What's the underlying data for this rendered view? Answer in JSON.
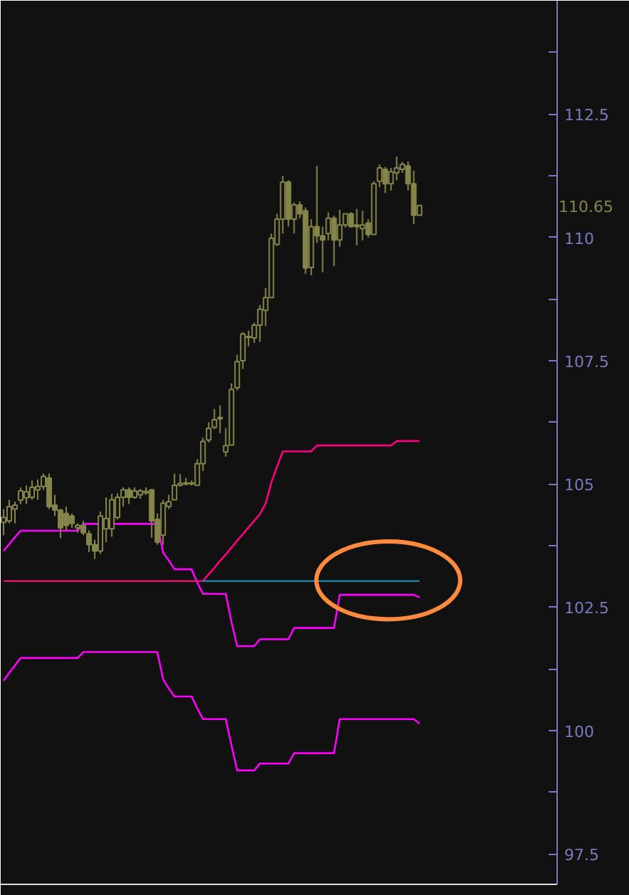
{
  "chart_data": {
    "type": "candlestick",
    "color": "#85854a",
    "categories": [
      null,
      null,
      null,
      null,
      null,
      null,
      null,
      null,
      null,
      null,
      null,
      null,
      null,
      null,
      null,
      null,
      null,
      null,
      null,
      null,
      null,
      null,
      null,
      null,
      null,
      null,
      null,
      null,
      null,
      null,
      null,
      null,
      null,
      null,
      null,
      null,
      null,
      null,
      null,
      null,
      null,
      null,
      null,
      null,
      null,
      null,
      null,
      null,
      null,
      null,
      null,
      null,
      null,
      null,
      null,
      null,
      null,
      null,
      null,
      null,
      null,
      null,
      null,
      null,
      null,
      null,
      null,
      null,
      null,
      null,
      null,
      null,
      null,
      null
    ],
    "ohlc": [
      [
        104.22,
        104.49,
        103.96,
        104.32
      ],
      [
        104.25,
        104.68,
        104.2,
        104.54
      ],
      [
        104.49,
        104.64,
        104.2,
        104.57
      ],
      [
        104.67,
        104.93,
        104.59,
        104.86
      ],
      [
        104.72,
        104.97,
        104.59,
        104.84
      ],
      [
        104.73,
        105.07,
        104.68,
        104.93
      ],
      [
        104.88,
        105.09,
        104.68,
        104.95
      ],
      [
        104.95,
        105.21,
        104.88,
        105.15
      ],
      [
        105.12,
        105.21,
        104.49,
        104.54
      ],
      [
        104.57,
        104.78,
        104.35,
        104.47
      ],
      [
        104.47,
        104.49,
        103.9,
        104.11
      ],
      [
        104.4,
        104.54,
        104.06,
        104.16
      ],
      [
        104.35,
        104.4,
        104.11,
        104.2
      ],
      [
        104.11,
        104.2,
        104.01,
        104.16
      ],
      [
        104.16,
        104.25,
        103.96,
        104.01
      ],
      [
        103.99,
        104.06,
        103.62,
        103.77
      ],
      [
        103.77,
        103.87,
        103.48,
        103.64
      ],
      [
        103.64,
        104.44,
        103.58,
        104.35
      ],
      [
        104.09,
        104.73,
        103.82,
        104.3
      ],
      [
        104.09,
        104.8,
        103.93,
        104.68
      ],
      [
        104.32,
        104.81,
        104.28,
        104.73
      ],
      [
        104.73,
        104.93,
        104.54,
        104.88
      ],
      [
        104.88,
        104.93,
        104.59,
        104.73
      ],
      [
        104.73,
        104.93,
        104.7,
        104.86
      ],
      [
        104.78,
        104.9,
        104.7,
        104.86
      ],
      [
        104.82,
        104.93,
        104.78,
        104.85
      ],
      [
        104.88,
        104.9,
        103.91,
        104.25
      ],
      [
        104.28,
        104.4,
        103.77,
        103.82
      ],
      [
        103.96,
        104.68,
        103.77,
        104.61
      ],
      [
        104.54,
        104.78,
        104.49,
        104.64
      ],
      [
        104.68,
        105.21,
        104.68,
        104.97
      ],
      [
        104.97,
        105.2,
        104.95,
        105.01
      ],
      [
        105.0,
        105.12,
        104.97,
        105.02
      ],
      [
        105.02,
        105.07,
        104.97,
        105.0
      ],
      [
        104.97,
        105.5,
        104.97,
        105.41
      ],
      [
        105.41,
        105.94,
        105.26,
        105.86
      ],
      [
        105.89,
        106.25,
        105.84,
        106.13
      ],
      [
        106.15,
        106.52,
        106.11,
        106.3
      ],
      [
        106.32,
        106.59,
        106.03,
        106.35
      ],
      [
        105.65,
        106.13,
        105.55,
        105.78
      ],
      [
        105.79,
        107.04,
        105.79,
        106.92
      ],
      [
        106.95,
        107.62,
        106.9,
        107.48
      ],
      [
        107.5,
        108.08,
        107.33,
        108.04
      ],
      [
        107.97,
        108.11,
        107.79,
        107.99
      ],
      [
        107.96,
        108.27,
        107.86,
        108.22
      ],
      [
        108.22,
        108.63,
        107.88,
        108.54
      ],
      [
        108.52,
        108.97,
        108.2,
        108.78
      ],
      [
        108.78,
        110.08,
        108.78,
        109.98
      ],
      [
        109.86,
        110.48,
        109.83,
        110.37
      ],
      [
        110.37,
        111.25,
        110.08,
        111.12
      ],
      [
        111.12,
        111.16,
        110.22,
        110.37
      ],
      [
        110.37,
        110.71,
        110.08,
        110.66
      ],
      [
        110.66,
        110.73,
        110.39,
        110.48
      ],
      [
        110.54,
        110.61,
        109.26,
        109.38
      ],
      [
        109.39,
        110.37,
        109.23,
        110.22
      ],
      [
        110.22,
        111.45,
        109.89,
        110.03
      ],
      [
        110.03,
        110.22,
        109.29,
        109.95
      ],
      [
        110.08,
        110.51,
        109.94,
        110.39
      ],
      [
        110.39,
        110.44,
        109.42,
        109.95
      ],
      [
        109.95,
        110.56,
        109.81,
        110.25
      ],
      [
        110.25,
        110.48,
        110.2,
        110.48
      ],
      [
        110.48,
        110.51,
        110.2,
        110.22
      ],
      [
        110.25,
        110.58,
        109.84,
        110.22
      ],
      [
        110.18,
        110.54,
        109.94,
        110.25
      ],
      [
        110.29,
        110.37,
        110.0,
        110.06
      ],
      [
        110.06,
        111.14,
        110.05,
        111.09
      ],
      [
        111.14,
        111.48,
        111.02,
        111.41
      ],
      [
        111.38,
        111.43,
        110.9,
        111.09
      ],
      [
        111.09,
        111.41,
        110.95,
        111.33
      ],
      [
        111.31,
        111.64,
        111.16,
        111.41
      ],
      [
        111.38,
        111.53,
        111.31,
        111.48
      ],
      [
        111.45,
        111.54,
        110.95,
        111.09
      ],
      [
        111.09,
        111.35,
        110.27,
        110.45
      ],
      [
        110.45,
        110.66,
        110.45,
        110.65
      ]
    ],
    "series": [
      {
        "type": "line",
        "color": "#ff00ff",
        "values": [
          103.64,
          103.78,
          103.92,
          104.05,
          104.05,
          104.05,
          104.05,
          104.05,
          104.05,
          104.05,
          104.05,
          104.05,
          104.05,
          104.05,
          104.19,
          104.19,
          104.19,
          104.19,
          104.19,
          104.19,
          104.19,
          104.19,
          104.19,
          104.19,
          104.19,
          104.19,
          104.19,
          104.19,
          103.61,
          103.45,
          103.27,
          103.27,
          103.27,
          103.27,
          103.0,
          102.77,
          102.77,
          102.77,
          102.77,
          102.77,
          102.2,
          101.71,
          101.71,
          101.71,
          101.71,
          101.85,
          101.85,
          101.85,
          101.85,
          101.85,
          101.85,
          102.08,
          102.08,
          102.08,
          102.08,
          102.08,
          102.08,
          102.08,
          102.08,
          102.75,
          102.75,
          102.75,
          102.75,
          102.75,
          102.75,
          102.75,
          102.75,
          102.75,
          102.75,
          102.75,
          102.75,
          102.75,
          102.75,
          102.7
        ]
      },
      {
        "type": "line",
        "color": "#ff00ff",
        "values": [
          101.01,
          101.17,
          101.32,
          101.47,
          101.47,
          101.47,
          101.47,
          101.47,
          101.47,
          101.47,
          101.47,
          101.47,
          101.47,
          101.47,
          101.59,
          101.59,
          101.59,
          101.59,
          101.59,
          101.59,
          101.59,
          101.59,
          101.59,
          101.59,
          101.59,
          101.59,
          101.59,
          101.59,
          101.04,
          100.85,
          100.69,
          100.69,
          100.69,
          100.69,
          100.45,
          100.23,
          100.23,
          100.23,
          100.23,
          100.23,
          99.7,
          99.19,
          99.19,
          99.19,
          99.19,
          99.33,
          99.33,
          99.33,
          99.33,
          99.33,
          99.33,
          99.54,
          99.54,
          99.54,
          99.54,
          99.54,
          99.54,
          99.54,
          99.54,
          100.23,
          100.23,
          100.23,
          100.23,
          100.23,
          100.23,
          100.23,
          100.23,
          100.23,
          100.23,
          100.23,
          100.23,
          100.23,
          100.23,
          100.14
        ]
      },
      {
        "type": "line",
        "color": "#ff0080",
        "values": [
          null,
          null,
          null,
          null,
          null,
          null,
          null,
          null,
          null,
          null,
          null,
          null,
          null,
          null,
          null,
          null,
          null,
          null,
          null,
          null,
          null,
          null,
          null,
          null,
          null,
          null,
          null,
          null,
          null,
          null,
          null,
          null,
          null,
          null,
          null,
          103.03,
          103.17,
          103.3,
          103.44,
          103.57,
          103.71,
          103.85,
          103.98,
          104.12,
          104.25,
          104.39,
          104.6,
          105.03,
          105.35,
          105.66,
          105.66,
          105.66,
          105.66,
          105.66,
          105.66,
          105.78,
          105.78,
          105.78,
          105.78,
          105.78,
          105.78,
          105.78,
          105.78,
          105.78,
          105.78,
          105.78,
          105.78,
          105.78,
          105.78,
          105.87,
          105.87,
          105.87,
          105.87,
          105.87
        ]
      },
      {
        "type": "line",
        "color": "#e0106e",
        "values": [
          103.03,
          103.03,
          103.03,
          103.03,
          103.03,
          103.03,
          103.03,
          103.03,
          103.03,
          103.03,
          103.03,
          103.03,
          103.03,
          103.03,
          103.03,
          103.03,
          103.03,
          103.03,
          103.03,
          103.03,
          103.03,
          103.03,
          103.03,
          103.03,
          103.03,
          103.03,
          103.03,
          103.03,
          103.03,
          103.03,
          103.03,
          103.03,
          103.03,
          103.03,
          103.03,
          103.03,
          null,
          null,
          null,
          null,
          null,
          null,
          null,
          null,
          null,
          null,
          null,
          null,
          null,
          null,
          null,
          null,
          null,
          null,
          null,
          null,
          null,
          null,
          null,
          null,
          null,
          null,
          null,
          null,
          null,
          null,
          null,
          null,
          null,
          null,
          null,
          null,
          null,
          null
        ]
      },
      {
        "type": "line",
        "color": "#1f7fa0",
        "values": [
          null,
          null,
          null,
          null,
          null,
          null,
          null,
          null,
          null,
          null,
          null,
          null,
          null,
          null,
          null,
          null,
          null,
          null,
          null,
          null,
          null,
          null,
          null,
          null,
          null,
          null,
          null,
          null,
          null,
          null,
          null,
          null,
          null,
          null,
          null,
          103.03,
          103.03,
          103.03,
          103.03,
          103.03,
          103.03,
          103.03,
          103.03,
          103.03,
          103.03,
          103.03,
          103.03,
          103.03,
          103.03,
          103.03,
          103.03,
          103.03,
          103.03,
          103.03,
          103.03,
          103.03,
          103.03,
          103.03,
          103.03,
          103.03,
          103.03,
          103.03,
          103.03,
          103.03,
          103.03,
          103.03,
          103.03,
          103.03,
          103.03,
          103.03,
          103.03,
          103.03,
          103.03,
          103.03
        ]
      }
    ],
    "ylim": [
      96.88,
      114.8
    ],
    "yticks": [
      97.5,
      100,
      102.5,
      105,
      107.5,
      110,
      112.5
    ],
    "annotations": [
      "110.65"
    ],
    "grid": false,
    "tick_labels": "y"
  }
}
